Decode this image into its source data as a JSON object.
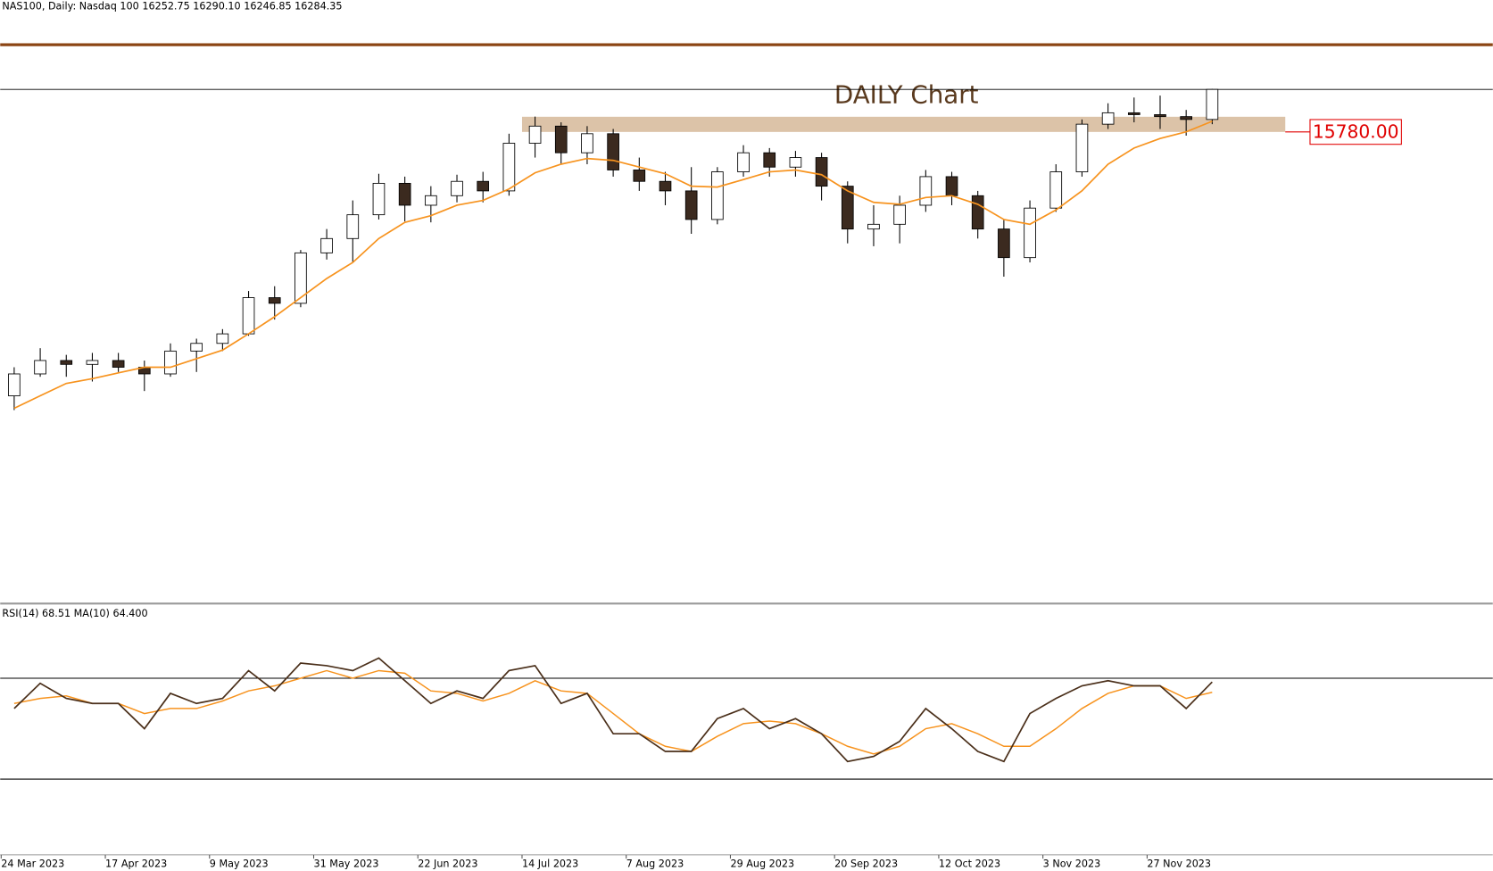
{
  "header": "NAS100, Daily:  Nasdaq 100  16252.75 16290.10 16246.85 16284.35",
  "chart_data": [
    {
      "type": "candlestick",
      "title": "DAILY Chart",
      "categories": [
        "24 Mar 2023",
        null,
        null,
        null,
        "17 Apr 2023",
        null,
        null,
        null,
        "9 May 2023",
        null,
        null,
        null,
        "31 May 2023",
        null,
        null,
        null,
        "22 Jun 2023",
        null,
        null,
        null,
        "14 Jul 2023",
        null,
        null,
        null,
        "7 Aug 2023",
        null,
        null,
        null,
        "29 Aug 2023",
        null,
        null,
        null,
        "20 Sep 2023",
        null,
        null,
        null,
        "12 Oct 2023",
        null,
        null,
        null,
        "3 Nov 2023",
        null,
        null,
        null,
        "27 Nov 2023",
        null,
        null
      ],
      "open": [
        12651,
        12911,
        13070,
        13024,
        13070,
        12990,
        12911,
        13182,
        13273,
        13386,
        13815,
        13748,
        14346,
        14516,
        14798,
        15171,
        14911,
        15024,
        15194,
        15081,
        15646,
        15849,
        15533,
        15759,
        15329,
        15194,
        15081,
        14742,
        15307,
        15533,
        15363,
        15476,
        15137,
        14629,
        14685,
        14911,
        15250,
        15024,
        14629,
        14290,
        14877,
        15307,
        15872,
        16007,
        15985,
        15962,
        15928
      ],
      "high": [
        12990,
        13216,
        13137,
        13160,
        13160,
        13069,
        13273,
        13329,
        13442,
        13894,
        13951,
        14380,
        14629,
        14968,
        15284,
        15250,
        15137,
        15273,
        15307,
        15759,
        15962,
        15894,
        15849,
        15815,
        15476,
        15307,
        15363,
        15363,
        15623,
        15589,
        15555,
        15533,
        15194,
        14911,
        15024,
        15329,
        15307,
        15081,
        14742,
        14968,
        15397,
        15928,
        16120,
        16188,
        16211,
        16041,
        16290.1
      ],
      "low": [
        12482,
        12877,
        12877,
        12821,
        12934,
        12708,
        12877,
        12934,
        13182,
        13363,
        13555,
        13702,
        14267,
        14233,
        14742,
        14719,
        14708,
        14945,
        14945,
        15024,
        15476,
        15397,
        15397,
        15250,
        15081,
        14911,
        14572,
        14685,
        15250,
        15250,
        15250,
        14968,
        14459,
        14425,
        14459,
        14832,
        14911,
        14516,
        14064,
        14233,
        14832,
        15250,
        15815,
        15894,
        15815,
        15736,
        15872
      ],
      "close": [
        12911,
        13070,
        13024,
        13070,
        12990,
        12911,
        13182,
        13273,
        13386,
        13815,
        13748,
        14346,
        14516,
        14798,
        15171,
        14911,
        15024,
        15194,
        15081,
        15646,
        15849,
        15533,
        15759,
        15329,
        15194,
        15081,
        14742,
        15307,
        15533,
        15363,
        15476,
        15137,
        14629,
        14685,
        14911,
        15250,
        15024,
        14629,
        14290,
        14877,
        15307,
        15872,
        16007,
        15985,
        15962,
        15928,
        16284.35
      ],
      "up_color": "#ffffff",
      "down_color": "#3b2a1f",
      "wick_color": "#000000",
      "ma": {
        "color": "#f7931e",
        "values": [
          12504,
          12651,
          12798,
          12855,
          12923,
          12990,
          12990,
          13092,
          13193,
          13386,
          13589,
          13815,
          14042,
          14233,
          14516,
          14708,
          14787,
          14911,
          14968,
          15104,
          15296,
          15397,
          15465,
          15442,
          15363,
          15284,
          15137,
          15126,
          15216,
          15307,
          15329,
          15273,
          15081,
          14945,
          14922,
          15002,
          15024,
          14922,
          14742,
          14685,
          14855,
          15081,
          15397,
          15589,
          15702,
          15781,
          15906
        ]
      },
      "zone": {
        "low": 15780,
        "high": 15960,
        "color": "#dcc3a8"
      },
      "annotations": [
        {
          "value": 15780,
          "label": "15780.00",
          "color": "#e00000"
        }
      ],
      "ylim": [
        10200,
        16780
      ]
    },
    {
      "type": "line",
      "title": "RSI(14) 68.51 MA(10) 64.400",
      "series": [
        {
          "color": "#4a2f1a",
          "values": [
            58,
            68,
            62,
            60,
            60,
            50,
            64,
            60,
            62,
            73,
            65,
            76,
            75,
            73,
            78,
            69,
            60,
            65,
            62,
            73,
            75,
            60,
            64,
            48,
            48,
            41,
            41,
            54,
            58,
            50,
            54,
            48,
            37,
            39,
            45,
            58,
            50,
            41,
            37,
            56,
            62,
            67,
            69,
            67,
            67,
            58,
            68.51
          ]
        },
        {
          "color": "#f7931e",
          "values": [
            60,
            62,
            63,
            60,
            60,
            56,
            58,
            58,
            61,
            65,
            67,
            70,
            73,
            70,
            73,
            72,
            65,
            64,
            61,
            64,
            69,
            65,
            64,
            56,
            48,
            43,
            41,
            47,
            52,
            53,
            52,
            48,
            43,
            40,
            43,
            50,
            52,
            48,
            43,
            43,
            50,
            58,
            64,
            67,
            67,
            62,
            64.4
          ]
        }
      ],
      "levels": [
        70,
        30
      ],
      "ylim": [
        0,
        100
      ]
    }
  ]
}
